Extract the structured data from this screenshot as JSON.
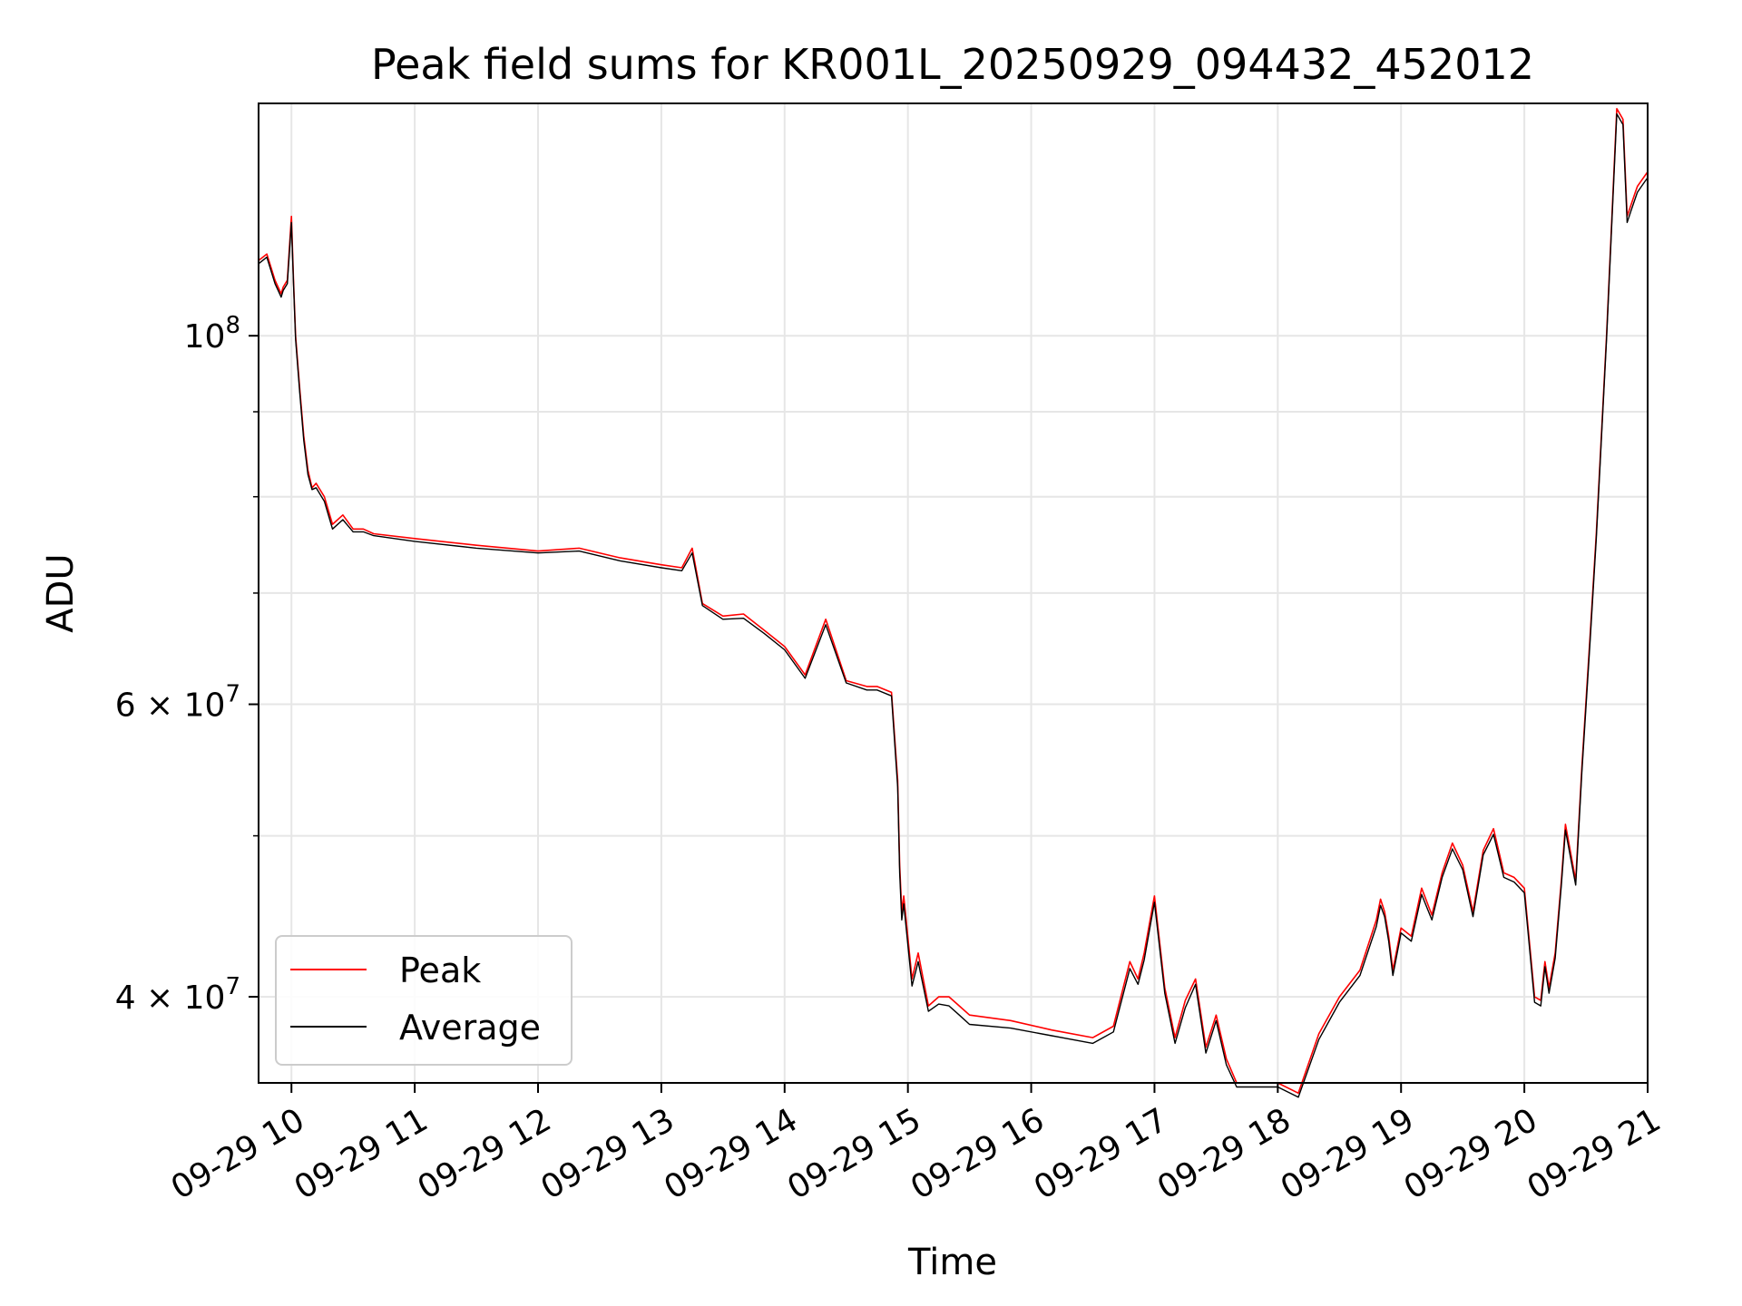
{
  "chart_data": {
    "type": "line",
    "title": "Peak field sums for KR001L_20250929_094432_452012",
    "xlabel": "Time",
    "ylabel": "ADU",
    "yscale": "log",
    "ylim": [
      35500000,
      138000000
    ],
    "xlim": [
      "09:44",
      "21:00"
    ],
    "x_ticks": [
      "09-29 10",
      "09-29 11",
      "09-29 12",
      "09-29 13",
      "09-29 14",
      "09-29 15",
      "09-29 16",
      "09-29 17",
      "09-29 18",
      "09-29 19",
      "09-29 20",
      "09-29 21"
    ],
    "y_ticks": [
      {
        "value": 40000000,
        "base": "4",
        "sep": " × ",
        "mant": "10",
        "exp": "7"
      },
      {
        "value": 60000000,
        "base": "6",
        "sep": " × ",
        "mant": "10",
        "exp": "7"
      },
      {
        "value": 100000000,
        "base": "",
        "sep": "",
        "mant": "10",
        "exp": "8"
      }
    ],
    "y_minor_ticks": [
      50000000,
      70000000,
      80000000,
      90000000
    ],
    "grid": true,
    "legend": "lower-left",
    "series": [
      {
        "name": "Peak",
        "color": "#ff0000"
      },
      {
        "name": "Average",
        "color": "#000000"
      }
    ],
    "x": [
      "09:44",
      "09:48",
      "09:52",
      "09:55",
      "09:56",
      "09:58",
      "10:00",
      "10:01",
      "10:02",
      "10:04",
      "10:06",
      "10:08",
      "10:10",
      "10:12",
      "10:16",
      "10:20",
      "10:25",
      "10:30",
      "10:35",
      "10:40",
      "11:00",
      "11:30",
      "12:00",
      "12:20",
      "12:40",
      "13:00",
      "13:10",
      "13:15",
      "13:20",
      "13:30",
      "13:40",
      "13:50",
      "14:00",
      "14:10",
      "14:20",
      "14:30",
      "14:40",
      "14:45",
      "14:52",
      "14:55",
      "14:56",
      "14:57",
      "14:58",
      "15:02",
      "15:05",
      "15:10",
      "15:15",
      "15:20",
      "15:25",
      "15:30",
      "15:50",
      "16:10",
      "16:30",
      "16:40",
      "16:48",
      "16:52",
      "16:55",
      "17:00",
      "17:05",
      "17:10",
      "17:15",
      "17:20",
      "17:25",
      "17:30",
      "17:35",
      "17:40",
      "17:50",
      "18:00",
      "18:10",
      "18:20",
      "18:30",
      "18:40",
      "18:48",
      "18:50",
      "18:52",
      "18:54",
      "18:56",
      "19:00",
      "19:05",
      "19:10",
      "19:15",
      "19:20",
      "19:25",
      "19:30",
      "19:35",
      "19:40",
      "19:45",
      "19:50",
      "19:55",
      "20:00",
      "20:05",
      "20:08",
      "20:10",
      "20:12",
      "20:15",
      "20:18",
      "20:20",
      "20:25",
      "20:28",
      "20:32",
      "20:35",
      "20:40",
      "20:45",
      "20:48",
      "20:50",
      "20:52",
      "20:54",
      "20:55",
      "20:57",
      "21:00"
    ],
    "peak": [
      111000000,
      112000000,
      108000000,
      106000000,
      107000000,
      108000000,
      118000000,
      108000000,
      100000000,
      93000000,
      87000000,
      83000000,
      81000000,
      81500000,
      80000000,
      77000000,
      78000000,
      76500000,
      76500000,
      76000000,
      75500000,
      74800000,
      74200000,
      74500000,
      73500000,
      72800000,
      72500000,
      74500000,
      69000000,
      67800000,
      68000000,
      66500000,
      65000000,
      62500000,
      67500000,
      62000000,
      61500000,
      61500000,
      61000000,
      54000000,
      48000000,
      45000000,
      46000000,
      41000000,
      42500000,
      39500000,
      40000000,
      40000000,
      39500000,
      39000000,
      38700000,
      38200000,
      37800000,
      38400000,
      42000000,
      41000000,
      42500000,
      46000000,
      40500000,
      37800000,
      39800000,
      41000000,
      37300000,
      39000000,
      36700000,
      35500000,
      35500000,
      35500000,
      35000000,
      38000000,
      40000000,
      41500000,
      44500000,
      45800000,
      45000000,
      43500000,
      41500000,
      44000000,
      43500000,
      46500000,
      44800000,
      47500000,
      49500000,
      48000000,
      45000000,
      49000000,
      50500000,
      47500000,
      47200000,
      46500000,
      40000000,
      39800000,
      42000000,
      40500000,
      42500000,
      47000000,
      50800000,
      47000000,
      55000000,
      66000000,
      76000000,
      100000000,
      137000000,
      135000000,
      118000000,
      120000000,
      122000000,
      123000000,
      124000000,
      125500000
    ],
    "average": [
      110500000,
      111500000,
      107500000,
      105500000,
      106500000,
      107500000,
      117000000,
      107500000,
      99500000,
      92500000,
      86500000,
      82500000,
      80800000,
      81000000,
      79500000,
      76500000,
      77500000,
      76200000,
      76200000,
      75800000,
      75200000,
      74500000,
      74000000,
      74200000,
      73200000,
      72500000,
      72200000,
      74000000,
      68800000,
      67500000,
      67600000,
      66200000,
      64700000,
      62200000,
      67000000,
      61800000,
      61200000,
      61200000,
      60700000,
      53500000,
      47500000,
      44500000,
      45500000,
      40600000,
      42000000,
      39200000,
      39600000,
      39500000,
      39000000,
      38500000,
      38300000,
      37900000,
      37500000,
      38100000,
      41600000,
      40700000,
      42100000,
      45600000,
      40200000,
      37500000,
      39400000,
      40700000,
      37000000,
      38700000,
      36400000,
      35300000,
      35300000,
      35300000,
      34800000,
      37700000,
      39700000,
      41200000,
      44100000,
      45400000,
      44700000,
      43200000,
      41200000,
      43700000,
      43200000,
      46100000,
      44500000,
      47200000,
      49100000,
      47700000,
      44700000,
      48700000,
      50100000,
      47200000,
      46900000,
      46200000,
      39700000,
      39500000,
      41700000,
      40200000,
      42200000,
      46700000,
      50400000,
      46700000,
      54600000,
      65500000,
      75500000,
      99500000,
      136000000,
      134000000,
      117000000,
      119000000,
      121000000,
      122000000,
      123000000,
      124500000
    ]
  }
}
